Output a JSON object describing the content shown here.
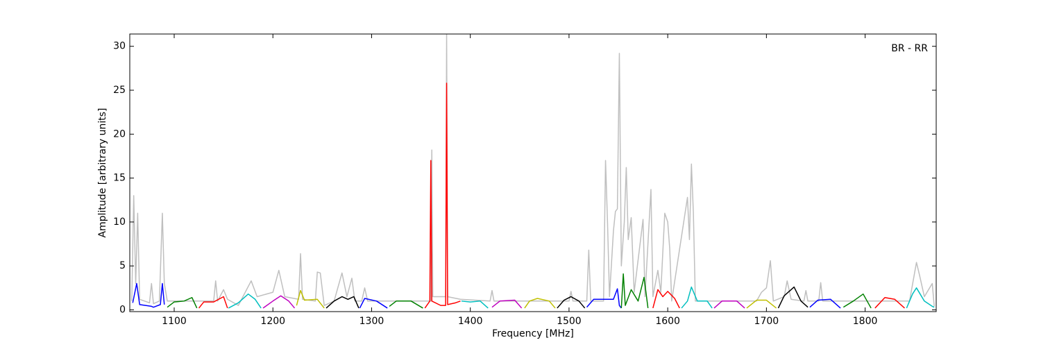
{
  "chart_data": {
    "type": "line",
    "annotation": "BR - RR",
    "x_label": "Frequency [MHz]",
    "y_label": "Amplitude [arbitrary units]",
    "xlim": [
      1055,
      1872
    ],
    "ylim": [
      -0.2,
      31.4
    ],
    "xticks": [
      1100,
      1200,
      1300,
      1400,
      1500,
      1600,
      1700,
      1800
    ],
    "yticks": [
      0,
      5,
      10,
      15,
      20,
      25,
      30
    ],
    "grid": false,
    "series": [
      {
        "color": "#bfbfbf",
        "x": [
          1057,
          1059,
          1061,
          1063,
          1065,
          1075,
          1077,
          1079,
          1085,
          1088,
          1090,
          1093,
          1130,
          1140,
          1142,
          1144,
          1150,
          1154,
          1165,
          1178,
          1184,
          1200,
          1206,
          1212,
          1226,
          1228,
          1230,
          1243,
          1245,
          1248,
          1252,
          1262,
          1270,
          1275,
          1280,
          1283,
          1290,
          1293,
          1296,
          1360,
          1361,
          1362,
          1375,
          1376,
          1377,
          1390,
          1420,
          1422,
          1424,
          1500,
          1502,
          1504,
          1518,
          1520,
          1522,
          1535,
          1537,
          1539,
          1541,
          1545,
          1547,
          1549,
          1551,
          1553,
          1556,
          1558,
          1560,
          1563,
          1566,
          1575,
          1577,
          1583,
          1585,
          1590,
          1593,
          1597,
          1600,
          1602,
          1604,
          1620,
          1622,
          1624,
          1626,
          1628,
          1640,
          1690,
          1695,
          1700,
          1704,
          1707,
          1718,
          1721,
          1725,
          1738,
          1740,
          1742,
          1753,
          1755,
          1757,
          1845,
          1852,
          1855,
          1860,
          1868,
          1870
        ],
        "values": [
          1,
          13,
          3,
          11,
          1.2,
          0.8,
          3,
          0.7,
          1,
          11,
          3,
          1,
          1,
          1,
          3.3,
          1,
          2.3,
          1.2,
          0.5,
          3.3,
          1.5,
          2,
          4.5,
          1.5,
          1.2,
          6.4,
          1.2,
          1,
          4.3,
          4.2,
          0.5,
          1,
          4.2,
          1.5,
          3.6,
          1,
          1,
          2.5,
          1,
          1,
          18.2,
          1.5,
          1.5,
          31.4,
          1.5,
          1.2,
          1,
          2.2,
          1,
          1,
          2.1,
          1,
          1,
          6.8,
          1,
          1,
          17,
          10,
          1.5,
          9,
          11.2,
          11.5,
          29.2,
          5,
          10,
          16.2,
          8,
          10.5,
          2,
          10.3,
          1.5,
          13.7,
          1.5,
          4.5,
          2,
          11,
          10,
          7,
          1,
          12.8,
          8,
          16.6,
          11,
          1,
          1,
          1,
          2,
          2.5,
          5.6,
          1,
          1.5,
          3.3,
          1.2,
          1,
          2.2,
          1,
          1,
          3.1,
          1,
          1,
          5.4,
          4,
          1.5,
          3,
          0.4
        ]
      },
      {
        "color": "#0000ff",
        "x": [
          1058,
          1062,
          1065,
          1077,
          1079,
          1086,
          1088,
          1090
        ],
        "values": [
          0.8,
          3,
          0.6,
          0.4,
          0.3,
          0.6,
          3,
          0.6
        ]
      },
      {
        "color": "#008000",
        "x": [
          1093,
          1100,
          1110,
          1118,
          1123
        ],
        "values": [
          0.3,
          0.9,
          1,
          1.4,
          0.2
        ]
      },
      {
        "color": "#ff0000",
        "x": [
          1125,
          1130,
          1140,
          1150,
          1154
        ],
        "values": [
          0.2,
          0.9,
          0.9,
          1.5,
          0.2
        ]
      },
      {
        "color": "#00bfbf",
        "x": [
          1155,
          1165,
          1175,
          1182,
          1188
        ],
        "values": [
          0.2,
          0.8,
          1.8,
          1.2,
          0.2
        ]
      },
      {
        "color": "#bf00bf",
        "x": [
          1190,
          1200,
          1208,
          1216,
          1222
        ],
        "values": [
          0.2,
          1,
          1.6,
          1,
          0.2
        ]
      },
      {
        "color": "#bfbf00",
        "x": [
          1224,
          1228,
          1232,
          1245,
          1252
        ],
        "values": [
          0.5,
          2.2,
          1.1,
          1.2,
          0.2
        ]
      },
      {
        "color": "#000000",
        "x": [
          1254,
          1262,
          1270,
          1276,
          1282,
          1287
        ],
        "values": [
          0.2,
          1,
          1.5,
          1.2,
          1.5,
          0.2
        ]
      },
      {
        "color": "#0000ff",
        "x": [
          1288,
          1293,
          1305,
          1316
        ],
        "values": [
          0.2,
          1.3,
          1,
          0.2
        ]
      },
      {
        "color": "#008000",
        "x": [
          1318,
          1325,
          1340,
          1352
        ],
        "values": [
          0.4,
          1,
          1,
          0.2
        ]
      },
      {
        "color": "#ff0000",
        "x": [
          1354,
          1359,
          1360,
          1361,
          1370,
          1375,
          1376,
          1377,
          1385,
          1390
        ],
        "values": [
          0.2,
          1,
          17,
          1,
          0.5,
          0.5,
          25.8,
          0.6,
          0.8,
          1
        ]
      },
      {
        "color": "#00bfbf",
        "x": [
          1391,
          1400,
          1410,
          1418
        ],
        "values": [
          1,
          0.9,
          1,
          0.2
        ]
      },
      {
        "color": "#bf00bf",
        "x": [
          1422,
          1430,
          1445,
          1452
        ],
        "values": [
          0.3,
          1,
          1.1,
          0.2
        ]
      },
      {
        "color": "#bfbf00",
        "x": [
          1455,
          1460,
          1468,
          1480,
          1486
        ],
        "values": [
          0.2,
          1,
          1.3,
          1,
          0.2
        ]
      },
      {
        "color": "#000000",
        "x": [
          1488,
          1495,
          1502,
          1510,
          1516
        ],
        "values": [
          0.2,
          1.1,
          1.5,
          1,
          0.2
        ]
      },
      {
        "color": "#0000ff",
        "x": [
          1518,
          1525,
          1545,
          1549,
          1551,
          1553
        ],
        "values": [
          0.3,
          1.2,
          1.2,
          2.4,
          0.5,
          0.2
        ]
      },
      {
        "color": "#008000",
        "x": [
          1553,
          1555,
          1557,
          1563,
          1570,
          1576,
          1580
        ],
        "values": [
          0.2,
          4.1,
          0.5,
          2.3,
          1,
          3.7,
          0.2
        ]
      },
      {
        "color": "#ff0000",
        "x": [
          1585,
          1590,
          1595,
          1600,
          1607,
          1612
        ],
        "values": [
          0.2,
          2.3,
          1.5,
          2.1,
          1.3,
          0.2
        ]
      },
      {
        "color": "#00bfbf",
        "x": [
          1614,
          1620,
          1624,
          1630,
          1640,
          1645
        ],
        "values": [
          0.2,
          1,
          2.6,
          1,
          1,
          0.2
        ]
      },
      {
        "color": "#bf00bf",
        "x": [
          1647,
          1655,
          1670,
          1678
        ],
        "values": [
          0.2,
          1,
          1,
          0.2
        ]
      },
      {
        "color": "#bfbf00",
        "x": [
          1680,
          1690,
          1700,
          1710
        ],
        "values": [
          0.2,
          1.1,
          1.1,
          0.2
        ]
      },
      {
        "color": "#000000",
        "x": [
          1712,
          1718,
          1728,
          1735,
          1742
        ],
        "values": [
          0.2,
          1.6,
          2.6,
          1,
          0.3
        ]
      },
      {
        "color": "#0000ff",
        "x": [
          1744,
          1752,
          1765,
          1775
        ],
        "values": [
          0.3,
          1.1,
          1.2,
          0.2
        ]
      },
      {
        "color": "#008000",
        "x": [
          1778,
          1788,
          1798,
          1806
        ],
        "values": [
          0.3,
          1,
          1.8,
          0.2
        ]
      },
      {
        "color": "#ff0000",
        "x": [
          1810,
          1820,
          1830,
          1840
        ],
        "values": [
          0.2,
          1.4,
          1.2,
          0.2
        ]
      },
      {
        "color": "#00bfbf",
        "x": [
          1842,
          1848,
          1852,
          1860,
          1868,
          1870
        ],
        "values": [
          0.2,
          1.8,
          2.5,
          1,
          0.4,
          0.3
        ]
      }
    ]
  }
}
